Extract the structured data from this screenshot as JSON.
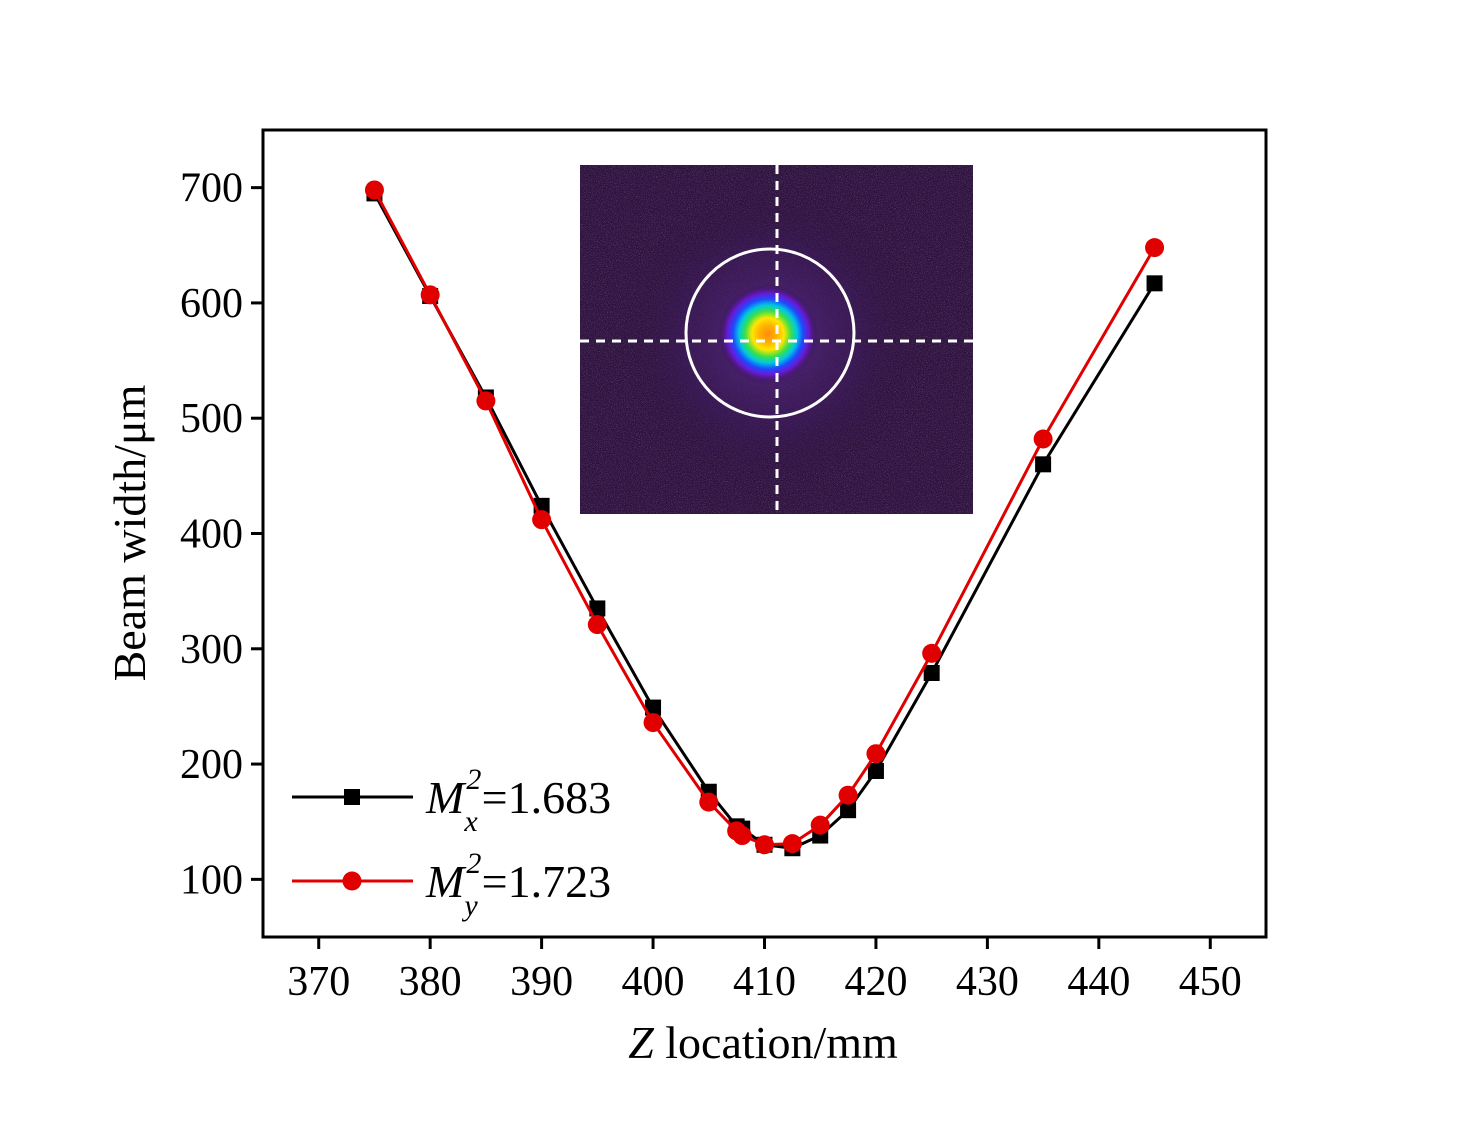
{
  "chart_data": {
    "type": "line",
    "title": "",
    "xlabel_var": "Z",
    "xlabel_rest": " location/mm",
    "ylabel": "Beam width/μm",
    "xlim": [
      365,
      455
    ],
    "ylim": [
      50,
      750
    ],
    "xticks": [
      370,
      380,
      390,
      400,
      410,
      420,
      430,
      440,
      450
    ],
    "yticks": [
      100,
      200,
      300,
      400,
      500,
      600,
      700
    ],
    "legend_position": "bottom-left",
    "series": [
      {
        "label_var": "M",
        "label_sup": "2",
        "label_sub": "x",
        "label_value": "=1.683",
        "color": "#000000",
        "marker": "square",
        "x": [
          375,
          380,
          385,
          390,
          395,
          400,
          405,
          407.5,
          408,
          410,
          412.5,
          415,
          417.5,
          420,
          425,
          435,
          445
        ],
        "y": [
          695,
          606,
          518,
          424,
          335,
          249,
          176,
          146,
          144,
          130,
          127,
          138,
          160,
          194,
          279,
          460,
          617
        ]
      },
      {
        "label_var": "M",
        "label_sup": "2",
        "label_sub": "y",
        "label_value": "=1.723",
        "color": "#e00000",
        "marker": "circle",
        "x": [
          375,
          380,
          385,
          390,
          395,
          400,
          405,
          407.5,
          408,
          410,
          412.5,
          415,
          417.5,
          420,
          425,
          435,
          445
        ],
        "y": [
          698,
          607,
          515,
          412,
          321,
          236,
          167,
          142,
          138,
          130,
          131,
          147,
          173,
          209,
          296,
          482,
          648
        ]
      }
    ],
    "inset": {
      "type": "beam-profile-image",
      "background_color": "#2e1140",
      "crosshair_color": "#ffffff",
      "ring_color": "#ffffff"
    }
  }
}
